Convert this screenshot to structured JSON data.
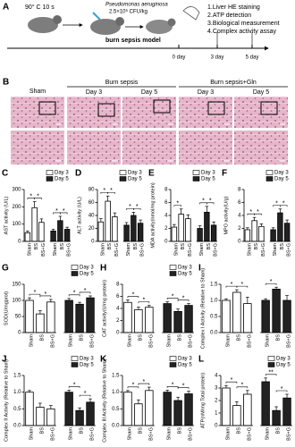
{
  "panel_a": {
    "label": "A",
    "burn": "90° C 10 s",
    "bacteria": "Pseudomonas aeruginosa",
    "dose": "2.5×10⁶ CFU/kg",
    "model": "burn sepsis model",
    "days": [
      "0 day",
      "3 day",
      "5 day"
    ],
    "assays": [
      "1.Liver HE staining",
      "2.ATP detection",
      "3.Biological measurement",
      "4.Complex activity assay"
    ]
  },
  "panel_b": {
    "label": "B",
    "sham": "Sham",
    "burn_sepsis": "Burn sepsis",
    "burn_sepsis_gln": "Burn sepsis+Gln",
    "days": [
      "Day 3",
      "Day 5",
      "Day 3",
      "Day 5"
    ]
  },
  "chart_data": [
    {
      "type": "bar",
      "panel": "C",
      "y_label": "AST activity (U/L)",
      "categories": [
        "Sham",
        "BS",
        "BS+G",
        "Sham",
        "BS",
        "BS+G"
      ],
      "series": [
        {
          "name": "Day 3",
          "color": "#ffffff",
          "values": [
            50,
            195,
            110,
            null,
            null,
            null
          ],
          "errors": [
            10,
            35,
            20,
            null,
            null,
            null
          ]
        },
        {
          "name": "Day 5",
          "color": "#222222",
          "values": [
            null,
            null,
            null,
            60,
            120,
            70
          ],
          "errors": [
            null,
            null,
            null,
            10,
            25,
            12
          ]
        }
      ],
      "ylim": [
        0,
        300
      ],
      "yticks": [
        0,
        100,
        200,
        300
      ],
      "legend": true,
      "significance": [
        {
          "pair": [
            0,
            1
          ],
          "label": "*"
        },
        {
          "pair": [
            1,
            2
          ],
          "label": "*"
        },
        {
          "pair": [
            3,
            4
          ],
          "label": "*"
        },
        {
          "pair": [
            4,
            5
          ],
          "label": "*"
        }
      ]
    },
    {
      "type": "bar",
      "panel": "D",
      "y_label": "ALT activity (U/L)",
      "categories": [
        "Sham",
        "BS",
        "BS+G",
        "Sham",
        "BS",
        "BS+G"
      ],
      "series": [
        {
          "name": "Day 3",
          "color": "#ffffff",
          "values": [
            30,
            62,
            38,
            null,
            null,
            null
          ],
          "errors": [
            5,
            8,
            6,
            null,
            null,
            null
          ]
        },
        {
          "name": "Day 5",
          "color": "#222222",
          "values": [
            null,
            null,
            null,
            25,
            40,
            28
          ],
          "errors": [
            null,
            null,
            null,
            4,
            5,
            5
          ]
        }
      ],
      "ylim": [
        0,
        80
      ],
      "yticks": [
        0,
        20,
        40,
        60,
        80
      ],
      "legend": true,
      "significance": [
        {
          "pair": [
            0,
            1
          ],
          "label": "*"
        },
        {
          "pair": [
            1,
            2
          ],
          "label": "*"
        },
        {
          "pair": [
            3,
            4
          ],
          "label": "*"
        },
        {
          "pair": [
            4,
            5
          ],
          "label": "*"
        }
      ]
    },
    {
      "type": "bar",
      "panel": "E",
      "y_label": "MDA activity(nmol/mg protein)",
      "categories": [
        "Sham",
        "BS",
        "BS+G",
        "Sham",
        "BS",
        "BS+G"
      ],
      "series": [
        {
          "name": "Day 3",
          "color": "#ffffff",
          "values": [
            2.2,
            4.2,
            3.5,
            null,
            null,
            null
          ],
          "errors": [
            0.4,
            0.8,
            0.6,
            null,
            null,
            null
          ]
        },
        {
          "name": "Day 5",
          "color": "#222222",
          "values": [
            null,
            null,
            null,
            2.0,
            4.5,
            2.5
          ],
          "errors": [
            null,
            null,
            null,
            0.4,
            0.9,
            0.5
          ]
        }
      ],
      "ylim": [
        0,
        8
      ],
      "yticks": [
        0,
        2,
        4,
        6,
        8
      ],
      "legend": true,
      "significance": [
        {
          "pair": [
            0,
            1
          ],
          "label": "*"
        },
        {
          "pair": [
            3,
            4
          ],
          "label": "*"
        },
        {
          "pair": [
            4,
            5
          ],
          "label": "*"
        }
      ]
    },
    {
      "type": "bar",
      "panel": "F",
      "y_label": "MPO activity(U/g)",
      "categories": [
        "Sham",
        "BS",
        "BS+G",
        "Sham",
        "BS",
        "BS+G"
      ],
      "series": [
        {
          "name": "Day 3",
          "color": "#ffffff",
          "values": [
            1.8,
            3.2,
            2.3,
            null,
            null,
            null
          ],
          "errors": [
            0.3,
            0.5,
            0.4,
            null,
            null,
            null
          ]
        },
        {
          "name": "Day 5",
          "color": "#222222",
          "values": [
            null,
            null,
            null,
            1.8,
            4.4,
            2.8
          ],
          "errors": [
            null,
            null,
            null,
            0.3,
            0.6,
            0.5
          ]
        }
      ],
      "ylim": [
        0,
        8
      ],
      "yticks": [
        0,
        2,
        4,
        6,
        8
      ],
      "legend": true,
      "significance": [
        {
          "pair": [
            0,
            1
          ],
          "label": "*"
        },
        {
          "pair": [
            1,
            2
          ],
          "label": "*"
        },
        {
          "pair": [
            3,
            4
          ],
          "label": "*"
        },
        {
          "pair": [
            4,
            5
          ],
          "label": "*"
        }
      ]
    },
    {
      "type": "bar",
      "panel": "G",
      "y_label": "SOD(U/mgprot)",
      "categories": [
        "Sham",
        "BS",
        "BS+G",
        "Sham",
        "BS",
        "BS+G"
      ],
      "series": [
        {
          "name": "Day 3",
          "color": "#ffffff",
          "values": [
            100,
            58,
            95,
            null,
            null,
            null
          ],
          "errors": [
            8,
            10,
            8,
            null,
            null,
            null
          ]
        },
        {
          "name": "Day 5",
          "color": "#222222",
          "values": [
            null,
            null,
            null,
            100,
            88,
            108
          ],
          "errors": [
            null,
            null,
            null,
            6,
            6,
            6
          ]
        }
      ],
      "ylim": [
        0,
        150
      ],
      "yticks": [
        0,
        50,
        100,
        150
      ],
      "legend": true,
      "significance": [
        {
          "pair": [
            0,
            1
          ],
          "label": "*"
        },
        {
          "pair": [
            1,
            2
          ],
          "label": "*"
        },
        {
          "pair": [
            3,
            4
          ],
          "label": "*"
        },
        {
          "pair": [
            4,
            5
          ],
          "label": "*"
        }
      ]
    },
    {
      "type": "bar",
      "panel": "H",
      "y_label": "CAT activity(U/mg protein)",
      "categories": [
        "Sham",
        "BS",
        "BS+G",
        "Sham",
        "BS",
        "BS+G"
      ],
      "series": [
        {
          "name": "Day 3",
          "color": "#ffffff",
          "values": [
            5.0,
            3.8,
            4.2,
            null,
            null,
            null
          ],
          "errors": [
            0.4,
            0.4,
            0.3,
            null,
            null,
            null
          ]
        },
        {
          "name": "Day 5",
          "color": "#222222",
          "values": [
            null,
            null,
            null,
            4.8,
            3.5,
            4.5
          ],
          "errors": [
            null,
            null,
            null,
            0.3,
            0.4,
            0.3
          ]
        }
      ],
      "ylim": [
        0,
        8
      ],
      "yticks": [
        0,
        2,
        4,
        6,
        8
      ],
      "legend": true,
      "significance": [
        {
          "pair": [
            0,
            1
          ],
          "label": "*"
        },
        {
          "pair": [
            1,
            2
          ],
          "label": "*"
        },
        {
          "pair": [
            3,
            4
          ],
          "label": "*"
        },
        {
          "pair": [
            4,
            5
          ],
          "label": "*"
        }
      ]
    },
    {
      "type": "bar",
      "panel": "I",
      "y_label": "Complex I Activity (Relative to Sham)",
      "categories": [
        "Sham",
        "BS",
        "BS+G",
        "Sham",
        "BS",
        "BS+G"
      ],
      "series": [
        {
          "name": "Day 3",
          "color": "#ffffff",
          "values": [
            1.0,
            1.25,
            0.9,
            null,
            null,
            null
          ],
          "errors": [
            0.05,
            0.08,
            0.2,
            null,
            null,
            null
          ]
        },
        {
          "name": "Day 5",
          "color": "#222222",
          "values": [
            null,
            null,
            null,
            1.0,
            1.35,
            1.0
          ],
          "errors": [
            null,
            null,
            null,
            0.05,
            0.06,
            0.15
          ]
        }
      ],
      "ylim": [
        0,
        1.5
      ],
      "yticks": [
        {
          "value": 0,
          "label": "0.0"
        },
        0.5,
        {
          "value": 1,
          "label": "1.0"
        },
        1.5
      ],
      "legend": false,
      "significance": [
        {
          "pair": [
            0,
            1
          ],
          "label": "*"
        },
        {
          "pair": [
            1,
            2
          ],
          "label": "*"
        },
        {
          "pair": [
            3,
            4
          ],
          "label": "*"
        }
      ]
    },
    {
      "type": "bar",
      "panel": "J",
      "y_label": "Complex II Activity (Relative to Sham)",
      "categories": [
        "Sham",
        "BS",
        "BS+G",
        "Sham",
        "BS",
        "BS+G"
      ],
      "series": [
        {
          "name": "Day 3",
          "color": "#ffffff",
          "values": [
            1.0,
            0.55,
            0.5,
            null,
            null,
            null
          ],
          "errors": [
            0.05,
            0.12,
            0.1,
            null,
            null,
            null
          ]
        },
        {
          "name": "Day 5",
          "color": "#222222",
          "values": [
            null,
            null,
            null,
            1.0,
            0.45,
            0.7
          ],
          "errors": [
            null,
            null,
            null,
            0.06,
            0.08,
            0.1
          ]
        }
      ],
      "ylim": [
        0,
        1.5
      ],
      "yticks": [
        {
          "value": 0,
          "label": "0.0"
        },
        0.5,
        {
          "value": 1,
          "label": "1.0"
        },
        1.5
      ],
      "legend": true,
      "significance": [
        {
          "pair": [
            3,
            4
          ],
          "label": "*"
        },
        {
          "pair": [
            4,
            5
          ],
          "label": "*"
        }
      ]
    },
    {
      "type": "bar",
      "panel": "K",
      "y_label": "Complex III Activity (Relative to Sham)",
      "categories": [
        "Sham",
        "BS",
        "BS+G",
        "Sham",
        "BS",
        "BS+G"
      ],
      "series": [
        {
          "name": "Day 3",
          "color": "#ffffff",
          "values": [
            1.0,
            0.65,
            1.05,
            null,
            null,
            null
          ],
          "errors": [
            0.05,
            0.12,
            0.1,
            null,
            null,
            null
          ]
        },
        {
          "name": "Day 5",
          "color": "#222222",
          "values": [
            null,
            null,
            null,
            1.0,
            0.75,
            0.95
          ],
          "errors": [
            null,
            null,
            null,
            0.06,
            0.1,
            0.08
          ]
        }
      ],
      "ylim": [
        0,
        1.5
      ],
      "yticks": [
        {
          "value": 0,
          "label": "0.0"
        },
        0.5,
        {
          "value": 1,
          "label": "1.0"
        },
        1.5
      ],
      "legend": true,
      "significance": [
        {
          "pair": [
            0,
            1
          ],
          "label": "*"
        },
        {
          "pair": [
            1,
            2
          ],
          "label": "*"
        },
        {
          "pair": [
            3,
            4
          ],
          "label": "*"
        },
        {
          "pair": [
            4,
            5
          ],
          "label": "*"
        }
      ]
    },
    {
      "type": "bar",
      "panel": "L",
      "y_label": "ATP(nM/mg Total protein)",
      "categories": [
        "Sham",
        "BS",
        "BS+G",
        "Sham",
        "BS",
        "BS+G"
      ],
      "series": [
        {
          "name": "Day 3",
          "color": "#ffffff",
          "values": [
            3.0,
            1.6,
            2.5,
            null,
            null,
            null
          ],
          "errors": [
            0.2,
            0.3,
            0.3,
            null,
            null,
            null
          ]
        },
        {
          "name": "Day 5",
          "color": "#222222",
          "values": [
            null,
            null,
            null,
            3.5,
            1.2,
            2.2
          ],
          "errors": [
            null,
            null,
            null,
            0.3,
            0.3,
            0.3
          ]
        }
      ],
      "ylim": [
        0,
        4
      ],
      "yticks": [
        0,
        1,
        2,
        3,
        4
      ],
      "legend": true,
      "significance": [
        {
          "pair": [
            0,
            1
          ],
          "label": "*"
        },
        {
          "pair": [
            1,
            2
          ],
          "label": "*"
        },
        {
          "pair": [
            3,
            4
          ],
          "label": "**"
        },
        {
          "pair": [
            4,
            5
          ],
          "label": "*"
        }
      ]
    }
  ]
}
